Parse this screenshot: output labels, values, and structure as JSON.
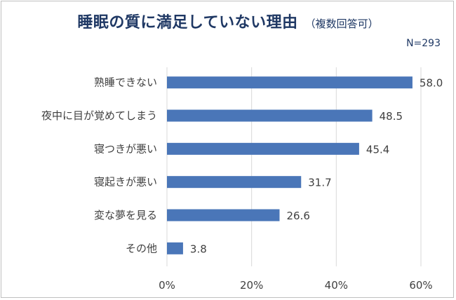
{
  "chart_data": {
    "type": "bar",
    "orientation": "horizontal",
    "title": "睡眠の質に満足していない理由",
    "subtitle": "（複数回答可）",
    "sample_size": "N=293",
    "categories": [
      "熟睡できない",
      "夜中に目が覚めてしまう",
      "寝つきが悪い",
      "寝起きが悪い",
      "変な夢を見る",
      "その他"
    ],
    "values": [
      58.0,
      48.5,
      45.4,
      31.7,
      26.6,
      3.8
    ],
    "value_labels": [
      "58.0",
      "48.5",
      "45.4",
      "31.7",
      "26.6",
      "3.8"
    ],
    "xlim": [
      0,
      60
    ],
    "x_ticks": [
      0,
      20,
      40,
      60
    ],
    "x_tick_labels": [
      "0%",
      "20%",
      "40%",
      "60%"
    ],
    "grid": "vertical",
    "colors": {
      "bar": "#4a76b8",
      "title": "#1f3864",
      "grid": "#d9d9d9",
      "text": "#404040"
    }
  }
}
